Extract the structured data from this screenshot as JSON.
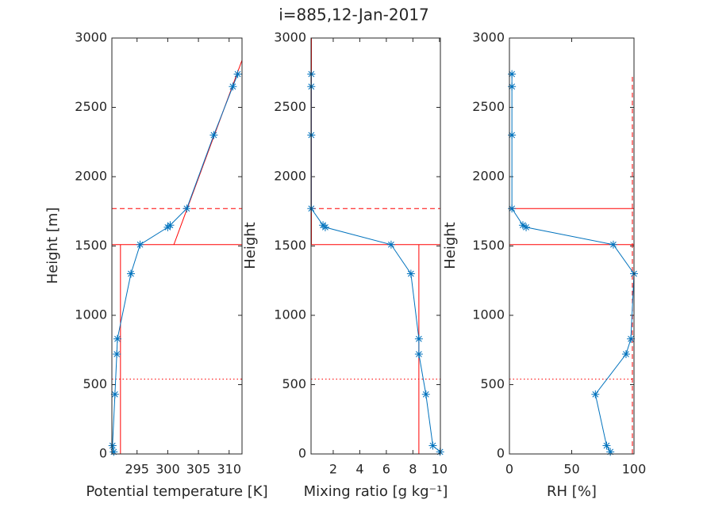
{
  "title": "i=885,12-Jan-2017",
  "chart_data": [
    {
      "type": "line",
      "xlabel": "Potential temperature [K]",
      "ylabel": "Height [m]",
      "color": "#0072bd",
      "x": [
        291.2,
        291.0,
        291.4,
        291.7,
        291.8,
        294.0,
        295.5,
        300.0,
        300.4,
        303.1,
        307.5,
        310.6,
        311.4
      ],
      "values": [
        15,
        60,
        430,
        720,
        830,
        1300,
        1510,
        1635,
        1650,
        1770,
        2300,
        2650,
        2740
      ],
      "xlim": [
        290.9,
        312.1
      ],
      "xticks": [
        295,
        300,
        305,
        310
      ],
      "ylim": [
        0,
        3000
      ],
      "yticks": [
        0,
        500,
        1000,
        1500,
        2000,
        2500,
        3000
      ],
      "ref_color": "#ff0000",
      "hlines": [
        {
          "value": 1510,
          "style": "solid"
        },
        {
          "value": 1770,
          "style": "dashed"
        },
        {
          "value": 540,
          "style": "dotted"
        }
      ],
      "segments": [
        {
          "x": [
            292.3,
            292.3
          ],
          "y": [
            0,
            1510
          ],
          "style": "solid"
        },
        {
          "x": [
            301.0,
            312.1
          ],
          "y": [
            1510,
            2840
          ],
          "style": "solid"
        }
      ]
    },
    {
      "type": "line",
      "xlabel": "Mixing ratio [g kg⁻¹]",
      "ylabel": "Height",
      "color": "#0072bd",
      "x": [
        10.05,
        9.5,
        8.98,
        8.45,
        8.45,
        7.85,
        6.36,
        1.4,
        1.23,
        0.35,
        0.35,
        0.35,
        0.35
      ],
      "values": [
        15,
        60,
        430,
        720,
        830,
        1300,
        1510,
        1635,
        1650,
        1770,
        2300,
        2650,
        2740
      ],
      "xlim": [
        0.33,
        10.07
      ],
      "xticks": [
        2,
        4,
        6,
        8,
        10
      ],
      "ylim": [
        0,
        3000
      ],
      "yticks": [
        0,
        500,
        1000,
        1500,
        2000,
        2500,
        3000
      ],
      "ref_color": "#ff0000",
      "hlines": [
        {
          "value": 1510,
          "style": "solid"
        },
        {
          "value": 1770,
          "style": "dashed"
        },
        {
          "value": 540,
          "style": "dotted"
        }
      ],
      "segments": [
        {
          "x": [
            8.45,
            8.45
          ],
          "y": [
            0,
            1510
          ],
          "style": "solid"
        },
        {
          "x": [
            0.36,
            0.36
          ],
          "y": [
            1510,
            3000
          ],
          "style": "solid"
        }
      ]
    },
    {
      "type": "line",
      "xlabel": "RH [%]",
      "ylabel": "Height",
      "color": "#0072bd",
      "x": [
        81,
        78,
        69,
        93.6,
        97.5,
        100,
        83.4,
        13.4,
        10.8,
        2,
        2,
        2,
        2
      ],
      "values": [
        15,
        60,
        430,
        720,
        830,
        1300,
        1510,
        1635,
        1650,
        1770,
        2300,
        2650,
        2740
      ],
      "xlim": [
        0,
        100
      ],
      "xticks": [
        0,
        50,
        100
      ],
      "ylim": [
        0,
        3000
      ],
      "yticks": [
        0,
        500,
        1000,
        1500,
        2000,
        2500,
        3000
      ],
      "ref_color": "#ff0000",
      "hlines": [
        {
          "value": 1510,
          "style": "solid"
        },
        {
          "value": 1770,
          "style": "solid"
        },
        {
          "value": 540,
          "style": "dotted"
        }
      ],
      "segments": [
        {
          "x": [
            98.7,
            98.7
          ],
          "y": [
            0,
            2720
          ],
          "style": "dashed"
        }
      ]
    }
  ]
}
